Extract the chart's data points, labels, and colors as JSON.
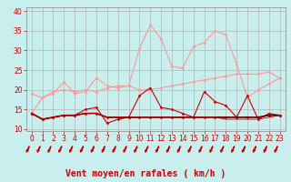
{
  "background_color": "#c8eeed",
  "grid_color": "#aaaaaa",
  "xlabel": "Vent moyen/en rafales ( km/h )",
  "xlabel_color": "#cc0000",
  "xlabel_fontsize": 7,
  "xticks": [
    0,
    1,
    2,
    3,
    4,
    5,
    6,
    7,
    8,
    9,
    10,
    11,
    12,
    13,
    14,
    15,
    16,
    17,
    18,
    19,
    20,
    21,
    22,
    23
  ],
  "yticks": [
    10,
    15,
    20,
    25,
    30,
    35,
    40
  ],
  "ylim": [
    9.5,
    41
  ],
  "xlim": [
    -0.5,
    23.5
  ],
  "tick_color": "#cc0000",
  "tick_fontsize": 5.5,
  "series": [
    {
      "x": [
        0,
        1,
        2,
        3,
        4,
        5,
        6,
        7,
        8,
        9,
        10,
        11,
        12,
        13,
        14,
        15,
        16,
        17,
        18,
        19,
        20,
        21,
        22,
        23
      ],
      "y": [
        19,
        18,
        19.5,
        20,
        19.5,
        20,
        19.5,
        20.5,
        21,
        21,
        20,
        20,
        20.5,
        21,
        21.5,
        22,
        22.5,
        23,
        23.5,
        24,
        24,
        24,
        24.5,
        23
      ],
      "color": "#ff9999",
      "lw": 0.8,
      "marker": "D",
      "ms": 1.5
    },
    {
      "x": [
        0,
        1,
        2,
        3,
        4,
        5,
        6,
        7,
        8,
        9,
        10,
        11,
        12,
        13,
        14,
        15,
        16,
        17,
        18,
        19,
        20,
        21,
        22,
        23
      ],
      "y": [
        14,
        18,
        19,
        22,
        19,
        19.5,
        23,
        21,
        20.5,
        21,
        30.5,
        36.5,
        33,
        26,
        25.5,
        31,
        32,
        35,
        34,
        26.5,
        18,
        20,
        21.5,
        23
      ],
      "color": "#ff9999",
      "lw": 0.8,
      "marker": "D",
      "ms": 1.5
    },
    {
      "x": [
        0,
        1,
        2,
        3,
        4,
        5,
        6,
        7,
        8,
        9,
        10,
        11,
        12,
        13,
        14,
        15,
        16,
        17,
        18,
        19,
        20,
        21,
        22,
        23
      ],
      "y": [
        14,
        12.5,
        13,
        13.5,
        13.5,
        15,
        15.5,
        11.5,
        12.5,
        13,
        18.5,
        20.5,
        15.5,
        15,
        14,
        13,
        19.5,
        17,
        16,
        13,
        18.5,
        12.5,
        14,
        13.5
      ],
      "color": "#cc0000",
      "lw": 0.8,
      "marker": "D",
      "ms": 1.5
    },
    {
      "x": [
        0,
        1,
        2,
        3,
        4,
        5,
        6,
        7,
        8,
        9,
        10,
        11,
        12,
        13,
        14,
        15,
        16,
        17,
        18,
        19,
        20,
        21,
        22,
        23
      ],
      "y": [
        14,
        12.5,
        13,
        13.5,
        13.5,
        14,
        14,
        13,
        13,
        13,
        13,
        13,
        13,
        13,
        13,
        13,
        13,
        13,
        13,
        13,
        13,
        13,
        13.5,
        13.5
      ],
      "color": "#cc0000",
      "lw": 1.2,
      "marker": "D",
      "ms": 1.5
    },
    {
      "x": [
        0,
        1,
        2,
        3,
        4,
        5,
        6,
        7,
        8,
        9,
        10,
        11,
        12,
        13,
        14,
        15,
        16,
        17,
        18,
        19,
        20,
        21,
        22,
        23
      ],
      "y": [
        14,
        12.5,
        13,
        13.5,
        13.5,
        14,
        14,
        13,
        13,
        13,
        13,
        13,
        13,
        13,
        13,
        13,
        13,
        13,
        13,
        13,
        13,
        13,
        13.5,
        13.5
      ],
      "color": "#000000",
      "lw": 0.6,
      "marker": null,
      "ms": 0
    },
    {
      "x": [
        0,
        1,
        2,
        3,
        4,
        5,
        6,
        7,
        8,
        9,
        10,
        11,
        12,
        13,
        14,
        15,
        16,
        17,
        18,
        19,
        20,
        21,
        22,
        23
      ],
      "y": [
        14,
        12.5,
        13,
        13.5,
        13.5,
        14,
        14,
        13,
        13,
        13,
        13,
        13,
        13,
        13,
        13,
        13,
        13,
        13,
        12.5,
        12.5,
        12.5,
        12.5,
        13,
        13.5
      ],
      "color": "#cc0000",
      "lw": 0.6,
      "marker": null,
      "ms": 0
    }
  ],
  "arrow_color": "#cc0000"
}
